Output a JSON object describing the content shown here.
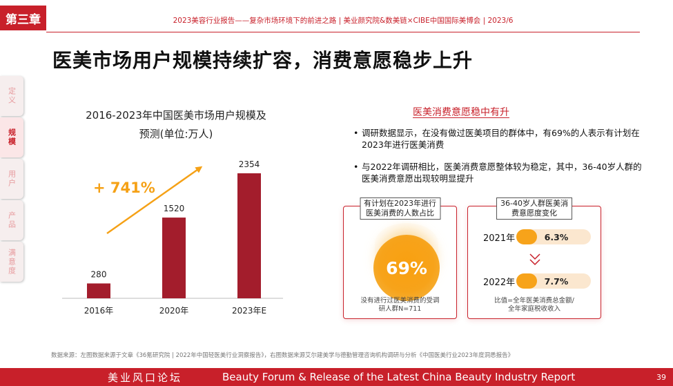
{
  "chapter": "第三章",
  "header": "2023美容行业报告——复杂市场环境下的前进之路  |  美业颜究院&数美链×CIBE中国国际美博会  |  2023/6",
  "title": "医美市场用户规模持续扩容，消费意愿稳步上升",
  "nav": [
    {
      "label": "定义",
      "active": false
    },
    {
      "label": "规模",
      "active": true
    },
    {
      "label": "用户",
      "active": false
    },
    {
      "label": "产品",
      "active": false
    },
    {
      "label": "满意度",
      "active": false
    }
  ],
  "chart_title_line1": "2016-2023年中国医美市场用户规模及",
  "chart_title_line2": "预测(单位:万人)",
  "chart_data": {
    "type": "bar",
    "title": "2016-2023年中国医美市场用户规模及预测(单位:万人)",
    "categories": [
      "2016年",
      "2020年",
      "2023年E"
    ],
    "values": [
      280,
      1520,
      2354
    ],
    "ylim": [
      0,
      2600
    ],
    "bar_color": "#a31d2c",
    "annotation": "+ 741%",
    "annotation_color": "#f5a116",
    "grid": false,
    "legend": "none"
  },
  "right": {
    "heading": "医美消费意愿稳中有升",
    "bullets": [
      "调研数据显示，在没有做过医美项目的群体中，有69%的人表示有计划在2023年进行医美消费",
      "与2022年调研相比，医美消费意愿整体较为稳定，其中，36-40岁人群的医美消费意愿出现较明显提升"
    ],
    "card1": {
      "label_line1": "有计划在2023年进行",
      "label_line2": "医美消费的人数占比",
      "value": "69%",
      "note_line1": "没有进行过医美消费的受调",
      "note_line2": "研人群N=711"
    },
    "card2": {
      "label_line1": "36-40岁人群医美消",
      "label_line2": "费意愿度变化",
      "rows": [
        {
          "year": "2021年",
          "value": "6.3%"
        },
        {
          "year": "2022年",
          "value": "7.7%"
        }
      ],
      "note_line1": "比值=全年医美消费总金额/",
      "note_line2": "全年家庭税收收入"
    }
  },
  "source": "数据来源：左图数据来源于文章《36氪研究院 | 2022年中国轻医美行业洞察报告》，右图数据来源艾尔建美学与德勤管理咨询机构调研与分析《中国医美行业2023年度洞悉报告》",
  "footer": {
    "cn": "美业风口论坛",
    "en": "Beauty Forum & Release of the Latest China Beauty Industry Report",
    "page": "39"
  },
  "colors": {
    "accent": "#c8202a",
    "bar": "#a31d2c",
    "orange": "#f7a31a"
  }
}
